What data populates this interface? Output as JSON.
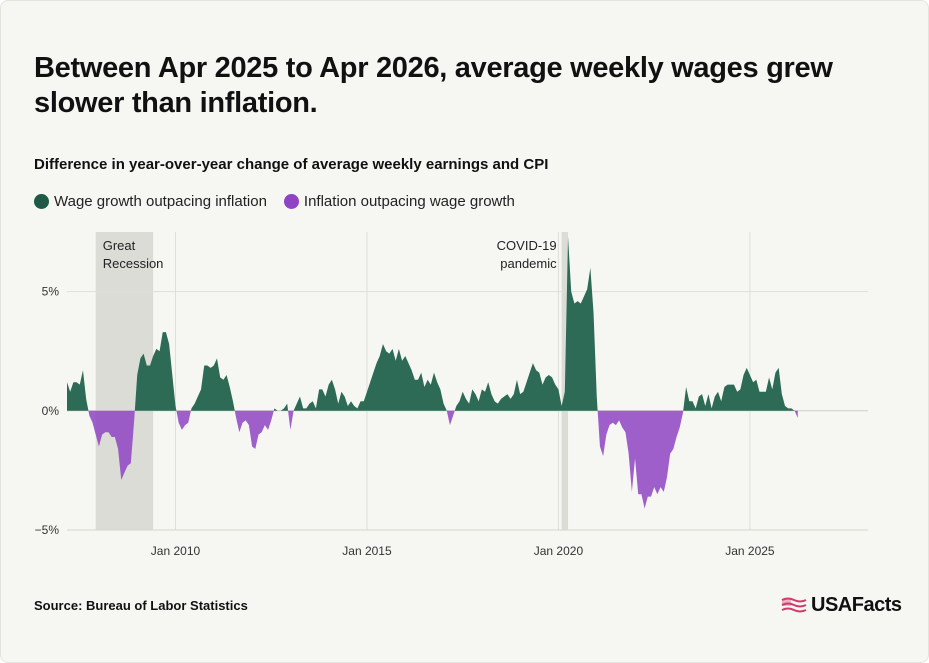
{
  "title": "Between Apr 2025 to Apr 2026, average weekly wages grew slower than inflation.",
  "subtitle": "Difference in year-over-year change of average weekly earnings and CPI",
  "legend": {
    "positive": "Wage growth outpacing inflation",
    "negative": "Inflation outpacing wage growth"
  },
  "source": "Source: Bureau of Labor Statistics",
  "logo": {
    "text": "USAFacts"
  },
  "colors": {
    "positive": "#2e6b57",
    "negative": "#8e44c4",
    "positive_dot": "#1f5a47",
    "shade": "#dcdcd7"
  },
  "chart_data": {
    "type": "area",
    "y_unit": "%",
    "xlim": [
      "2007-03",
      "2028-02"
    ],
    "ylim": [
      -5,
      7.5
    ],
    "grid": true,
    "y_ticks": [
      {
        "value": 5,
        "label": "5%"
      },
      {
        "value": 0,
        "label": "0%"
      },
      {
        "value": -5,
        "label": "−5%"
      }
    ],
    "x_ticks": [
      {
        "value": "2010-01",
        "label": "Jan 2010"
      },
      {
        "value": "2015-01",
        "label": "Jan 2015"
      },
      {
        "value": "2020-01",
        "label": "Jan 2020"
      },
      {
        "value": "2025-01",
        "label": "Jan 2025"
      }
    ],
    "annotations": [
      {
        "label_lines": [
          "Great",
          "Recession"
        ],
        "start": "2007-12",
        "end": "2009-06"
      },
      {
        "label_lines": [
          "COVID-19",
          "pandemic"
        ],
        "start": "2020-02",
        "end": "2020-04"
      }
    ],
    "series": [
      {
        "x": [
          "2007-03",
          "2007-04",
          "2007-05",
          "2007-06",
          "2007-07",
          "2007-08",
          "2007-09",
          "2007-10",
          "2007-11",
          "2007-12",
          "2008-01",
          "2008-02",
          "2008-03",
          "2008-04",
          "2008-05",
          "2008-06",
          "2008-07",
          "2008-08",
          "2008-09",
          "2008-10",
          "2008-11",
          "2008-12",
          "2009-01",
          "2009-02",
          "2009-03",
          "2009-04",
          "2009-05",
          "2009-06",
          "2009-07",
          "2009-08",
          "2009-09",
          "2009-10",
          "2009-11",
          "2009-12",
          "2010-01",
          "2010-02",
          "2010-03",
          "2010-04",
          "2010-05",
          "2010-06",
          "2010-07",
          "2010-08",
          "2010-09",
          "2010-10",
          "2010-11",
          "2010-12",
          "2011-01",
          "2011-02",
          "2011-03",
          "2011-04",
          "2011-05",
          "2011-06",
          "2011-07",
          "2011-08",
          "2011-09",
          "2011-10",
          "2011-11",
          "2011-12",
          "2012-01",
          "2012-02",
          "2012-03",
          "2012-04",
          "2012-05",
          "2012-06",
          "2012-07",
          "2012-08",
          "2012-09",
          "2012-10",
          "2012-11",
          "2012-12",
          "2013-01",
          "2013-02",
          "2013-03",
          "2013-04",
          "2013-05",
          "2013-06",
          "2013-07",
          "2013-08",
          "2013-09",
          "2013-10",
          "2013-11",
          "2013-12",
          "2014-01",
          "2014-02",
          "2014-03",
          "2014-04",
          "2014-05",
          "2014-06",
          "2014-07",
          "2014-08",
          "2014-09",
          "2014-10",
          "2014-11",
          "2014-12",
          "2015-01",
          "2015-02",
          "2015-03",
          "2015-04",
          "2015-05",
          "2015-06",
          "2015-07",
          "2015-08",
          "2015-09",
          "2015-10",
          "2015-11",
          "2015-12",
          "2016-01",
          "2016-02",
          "2016-03",
          "2016-04",
          "2016-05",
          "2016-06",
          "2016-07",
          "2016-08",
          "2016-09",
          "2016-10",
          "2016-11",
          "2016-12",
          "2017-01",
          "2017-02",
          "2017-03",
          "2017-04",
          "2017-05",
          "2017-06",
          "2017-07",
          "2017-08",
          "2017-09",
          "2017-10",
          "2017-11",
          "2017-12",
          "2018-01",
          "2018-02",
          "2018-03",
          "2018-04",
          "2018-05",
          "2018-06",
          "2018-07",
          "2018-08",
          "2018-09",
          "2018-10",
          "2018-11",
          "2018-12",
          "2019-01",
          "2019-02",
          "2019-03",
          "2019-04",
          "2019-05",
          "2019-06",
          "2019-07",
          "2019-08",
          "2019-09",
          "2019-10",
          "2019-11",
          "2019-12",
          "2020-01",
          "2020-02",
          "2020-03",
          "2020-04",
          "2020-05",
          "2020-06",
          "2020-07",
          "2020-08",
          "2020-09",
          "2020-10",
          "2020-11",
          "2020-12",
          "2021-01",
          "2021-02",
          "2021-03",
          "2021-04",
          "2021-05",
          "2021-06",
          "2021-07",
          "2021-08",
          "2021-09",
          "2021-10",
          "2021-11",
          "2021-12",
          "2022-01",
          "2022-02",
          "2022-03",
          "2022-04",
          "2022-05",
          "2022-06",
          "2022-07",
          "2022-08",
          "2022-09",
          "2022-10",
          "2022-11",
          "2022-12",
          "2023-01",
          "2023-02",
          "2023-03",
          "2023-04",
          "2023-05",
          "2023-06",
          "2023-07",
          "2023-08",
          "2023-09",
          "2023-10",
          "2023-11",
          "2023-12",
          "2024-01",
          "2024-02",
          "2024-03",
          "2024-04",
          "2024-05",
          "2024-06",
          "2024-07",
          "2024-08",
          "2024-09",
          "2024-10",
          "2024-11",
          "2024-12",
          "2025-01",
          "2025-02",
          "2025-03",
          "2025-04",
          "2025-05",
          "2025-06",
          "2025-07",
          "2025-08",
          "2025-09",
          "2025-10",
          "2025-11",
          "2025-12",
          "2026-01",
          "2026-02",
          "2026-03",
          "2026-04"
        ],
        "y": [
          1.2,
          0.8,
          1.2,
          1.2,
          1.1,
          1.7,
          0.5,
          -0.2,
          -0.5,
          -1.0,
          -1.5,
          -1.0,
          -0.9,
          -0.9,
          -1.1,
          -1.1,
          -1.6,
          -2.9,
          -2.6,
          -2.3,
          -2.2,
          -0.5,
          1.5,
          2.2,
          2.4,
          1.9,
          1.9,
          2.3,
          2.6,
          2.5,
          3.3,
          3.3,
          2.8,
          1.5,
          0.2,
          -0.5,
          -0.8,
          -0.6,
          -0.5,
          0.1,
          0.3,
          0.6,
          0.9,
          1.9,
          1.9,
          1.8,
          1.9,
          2.2,
          1.4,
          1.3,
          1.5,
          1.0,
          0.4,
          -0.3,
          -0.9,
          -0.5,
          -0.4,
          -0.6,
          -1.5,
          -1.6,
          -1.0,
          -0.9,
          -0.6,
          -0.8,
          -0.4,
          0.1,
          0.0,
          0.0,
          0.1,
          0.3,
          -0.8,
          0.0,
          0.3,
          0.6,
          0.1,
          0.1,
          0.3,
          0.4,
          0.1,
          0.9,
          0.9,
          0.6,
          1.1,
          1.3,
          0.9,
          0.3,
          0.8,
          0.6,
          0.2,
          0.4,
          0.2,
          0.1,
          0.4,
          0.4,
          0.8,
          1.2,
          1.6,
          2.0,
          2.3,
          2.8,
          2.5,
          2.4,
          2.6,
          2.1,
          2.6,
          2.1,
          2.3,
          2.0,
          1.7,
          1.3,
          1.3,
          1.6,
          1.0,
          1.3,
          1.1,
          1.6,
          1.2,
          0.9,
          0.3,
          0.0,
          -0.6,
          -0.2,
          0.2,
          0.4,
          0.8,
          0.5,
          0.3,
          0.9,
          0.7,
          0.4,
          0.9,
          0.8,
          1.2,
          0.7,
          0.4,
          0.3,
          0.5,
          0.6,
          0.7,
          0.5,
          0.7,
          1.3,
          0.7,
          0.8,
          1.2,
          1.6,
          2.0,
          1.7,
          1.6,
          1.1,
          1.4,
          1.5,
          1.4,
          1.1,
          0.9,
          0.2,
          0.8,
          7.3,
          5.0,
          4.5,
          4.6,
          4.5,
          4.8,
          5.1,
          6.0,
          4.1,
          0.6,
          -1.5,
          -1.9,
          -1.0,
          -0.6,
          -0.5,
          -0.6,
          -0.4,
          -0.7,
          -0.9,
          -1.8,
          -3.4,
          -2.0,
          -3.5,
          -3.5,
          -4.1,
          -3.6,
          -3.6,
          -3.2,
          -3.5,
          -3.2,
          -3.4,
          -2.8,
          -1.8,
          -1.6,
          -1.1,
          -0.7,
          -0.1,
          1.0,
          0.4,
          0.4,
          0.1,
          0.6,
          0.7,
          0.2,
          0.7,
          0.1,
          0.6,
          0.8,
          0.4,
          1.0,
          1.1,
          1.1,
          1.1,
          0.8,
          0.9,
          1.5,
          1.8,
          1.5,
          1.2,
          1.3,
          0.8,
          0.8,
          0.8,
          1.4,
          0.9,
          1.6,
          1.8,
          0.7,
          0.2,
          0.1,
          0.1,
          0.0,
          -0.3
        ]
      }
    ]
  }
}
